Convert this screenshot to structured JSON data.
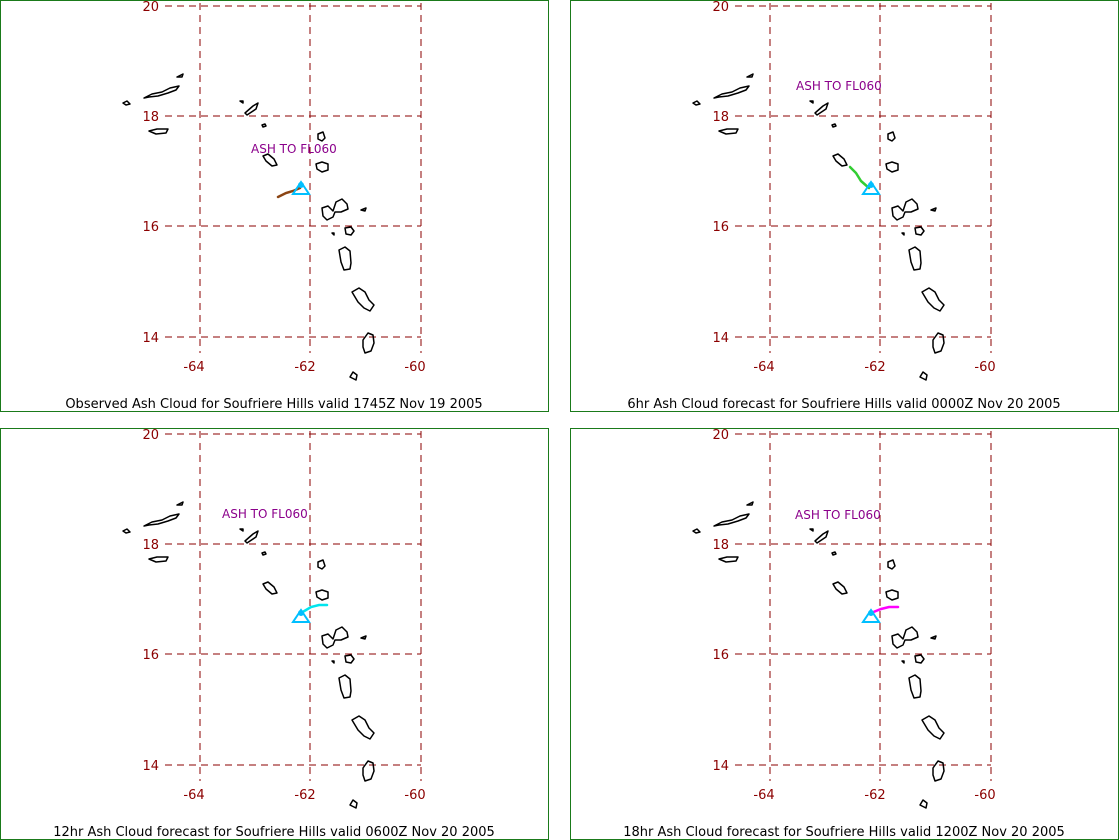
{
  "map": {
    "lat_ticks": [
      "20",
      "18",
      "16",
      "14"
    ],
    "lon_ticks": [
      "-64",
      "-62",
      "-60"
    ],
    "grid_color": "#8b0000",
    "coast_color": "#000000",
    "volcano_icon": "triangle-icon",
    "volcano_color": "#00bfff",
    "ash_label_color": "#8b008b"
  },
  "panels": [
    {
      "caption": "Observed Ash Cloud for Soufriere  Hills valid 1745Z Nov 19 2005",
      "ash_label": "ASH TO FL060",
      "cloud_color": "#8b4513",
      "cloud_icon": "ash-cloud-icon"
    },
    {
      "caption": "6hr Ash Cloud forecast for Soufriere  Hills valid 0000Z Nov 20 2005",
      "ash_label": "ASH TO FL060",
      "cloud_color": "#32cd32",
      "cloud_icon": "ash-cloud-icon"
    },
    {
      "caption": "12hr Ash Cloud forecast for Soufriere  Hills valid 0600Z Nov 20 2005",
      "ash_label": "ASH TO FL060",
      "cloud_color": "#00e5ee",
      "cloud_icon": "ash-cloud-icon"
    },
    {
      "caption": "18hr Ash Cloud forecast for Soufriere  Hills valid 1200Z Nov 20 2005",
      "ash_label": "ASH TO FL060",
      "cloud_color": "#ff00ff",
      "cloud_icon": "ash-cloud-icon"
    }
  ]
}
